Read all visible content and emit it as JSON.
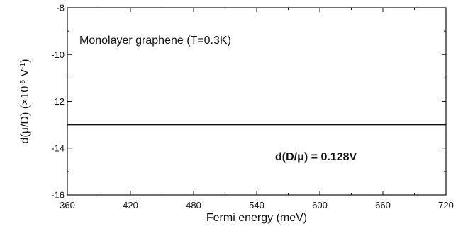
{
  "chart_data": {
    "type": "line",
    "title": "",
    "xlabel": "Fermi energy (meV)",
    "ylabel_parts": {
      "base": "d(μ/D) (×10",
      "exp1": "-5",
      "mid": " V",
      "exp2": "-1",
      "end": ")"
    },
    "xlim": [
      360,
      720
    ],
    "ylim": [
      -16,
      -8
    ],
    "xticks": [
      360,
      420,
      480,
      540,
      600,
      660,
      720
    ],
    "xtick_labels": [
      "360",
      "420",
      "480",
      "540",
      "600",
      "660",
      "720"
    ],
    "yticks": [
      -16,
      -14,
      -12,
      -10,
      -8
    ],
    "ytick_labels": [
      "-16",
      "-14",
      "-12",
      "-10",
      "-8"
    ],
    "grid": false,
    "series": [
      {
        "x": [
          360,
          720
        ],
        "y": [
          -13,
          -13
        ],
        "color": "#111111"
      }
    ],
    "annotations": [
      {
        "text": "Monolayer graphene (T=0.3K)",
        "style": "normal"
      },
      {
        "text": "d(D/μ) = 0.128V",
        "style": "bold"
      }
    ]
  }
}
